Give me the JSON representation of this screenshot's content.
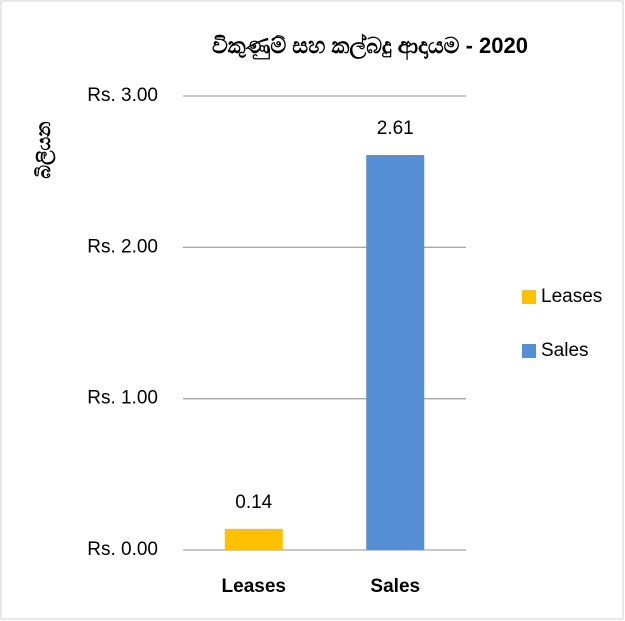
{
  "chart_data": {
    "type": "bar",
    "title": "විකුණුම් සහ කල්බදු ආදායම  -  2020",
    "y_label": "බිලියන",
    "categories": [
      "Leases",
      "Sales"
    ],
    "values": [
      0.14,
      2.61
    ],
    "colors": [
      "#ffc000",
      "#558ed5"
    ],
    "ylim": [
      0,
      3
    ],
    "yticks": [
      {
        "value": 0,
        "label": "Rs. 0.00"
      },
      {
        "value": 1,
        "label": "Rs. 1.00"
      },
      {
        "value": 2,
        "label": "Rs. 2.00"
      },
      {
        "value": 3,
        "label": "Rs. 3.00"
      }
    ],
    "grid": true,
    "legend": "right"
  }
}
